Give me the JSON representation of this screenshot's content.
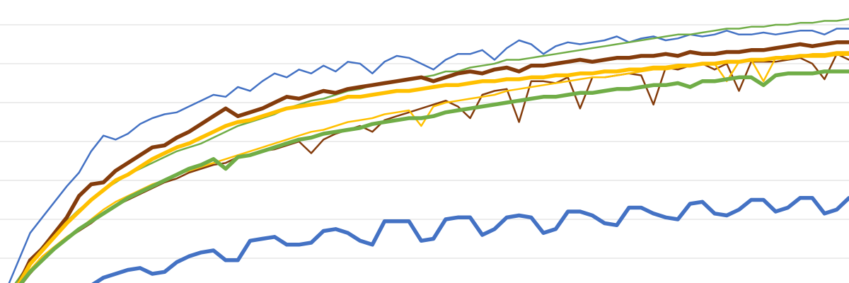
{
  "chart_data": {
    "type": "line",
    "title": "",
    "xlabel": "",
    "ylabel": "",
    "x": [
      1,
      2,
      3,
      4,
      5,
      6,
      7,
      8,
      9,
      10,
      11,
      12,
      13,
      14,
      15,
      16,
      17,
      18,
      19,
      20,
      21,
      22,
      23,
      24,
      25,
      26,
      27,
      28,
      29,
      30,
      31,
      32,
      33,
      34,
      35,
      36,
      37,
      38,
      39,
      40,
      41,
      42,
      43,
      44,
      45,
      46,
      47,
      48,
      49,
      50,
      51,
      52,
      53,
      54,
      55,
      56,
      57,
      58,
      59,
      60,
      61,
      62,
      63,
      64,
      65,
      66,
      67,
      68,
      69,
      70
    ],
    "ylim": [
      0,
      7.2
    ],
    "grid": true,
    "legend": "none",
    "series": [
      {
        "color": "#4472C4",
        "weight": "thin",
        "values": [
          0.15,
          0.9,
          1.65,
          2.05,
          2.45,
          2.85,
          3.2,
          3.75,
          4.15,
          4.05,
          4.2,
          4.45,
          4.6,
          4.7,
          4.75,
          4.9,
          5.05,
          5.2,
          5.15,
          5.4,
          5.3,
          5.55,
          5.75,
          5.65,
          5.85,
          5.75,
          5.95,
          5.8,
          6.05,
          6.0,
          5.75,
          6.05,
          6.2,
          6.15,
          6.0,
          5.85,
          6.1,
          6.25,
          6.25,
          6.35,
          6.1,
          6.4,
          6.6,
          6.5,
          6.25,
          6.45,
          6.55,
          6.5,
          6.55,
          6.6,
          6.7,
          6.55,
          6.65,
          6.7,
          6.6,
          6.65,
          6.75,
          6.7,
          6.75,
          6.85,
          6.75,
          6.75,
          6.8,
          6.75,
          6.8,
          6.85,
          6.85,
          6.75,
          6.9,
          6.9
        ]
      },
      {
        "color": "#70AD47",
        "weight": "thin",
        "values": [
          0.0,
          0.45,
          0.9,
          1.3,
          1.65,
          1.95,
          2.25,
          2.5,
          2.75,
          2.95,
          3.15,
          3.3,
          3.45,
          3.6,
          3.75,
          3.85,
          3.95,
          4.1,
          4.25,
          4.4,
          4.5,
          4.6,
          4.7,
          4.85,
          4.95,
          5.05,
          5.1,
          5.2,
          5.3,
          5.35,
          5.45,
          5.5,
          5.55,
          5.6,
          5.65,
          5.7,
          5.8,
          5.8,
          5.9,
          5.95,
          6.0,
          6.1,
          6.1,
          6.15,
          6.2,
          6.25,
          6.3,
          6.35,
          6.4,
          6.45,
          6.5,
          6.55,
          6.6,
          6.65,
          6.7,
          6.75,
          6.75,
          6.8,
          6.85,
          6.9,
          6.9,
          6.95,
          6.95,
          7.0,
          7.0,
          7.05,
          7.05,
          7.1,
          7.1,
          7.15
        ]
      },
      {
        "color": "#843C0C",
        "weight": "thick",
        "values": [
          0.0,
          0.3,
          0.95,
          1.25,
          1.65,
          2.05,
          2.6,
          2.9,
          2.95,
          3.25,
          3.45,
          3.65,
          3.85,
          3.9,
          4.1,
          4.25,
          4.45,
          4.65,
          4.85,
          4.65,
          4.75,
          4.85,
          5.0,
          5.15,
          5.1,
          5.2,
          5.3,
          5.25,
          5.35,
          5.4,
          5.45,
          5.5,
          5.55,
          5.6,
          5.65,
          5.55,
          5.65,
          5.75,
          5.8,
          5.75,
          5.85,
          5.9,
          5.8,
          5.95,
          5.95,
          6.0,
          6.05,
          6.1,
          6.05,
          6.1,
          6.15,
          6.15,
          6.2,
          6.2,
          6.25,
          6.2,
          6.3,
          6.25,
          6.25,
          6.3,
          6.3,
          6.35,
          6.35,
          6.4,
          6.45,
          6.5,
          6.45,
          6.5,
          6.55,
          6.55
        ]
      },
      {
        "color": "#843C0C",
        "weight": "thin",
        "values": [
          0.0,
          0.2,
          0.6,
          0.95,
          1.25,
          1.5,
          1.7,
          1.9,
          2.15,
          2.35,
          2.5,
          2.65,
          2.8,
          2.95,
          3.05,
          3.2,
          3.3,
          3.4,
          3.45,
          3.6,
          3.65,
          3.75,
          3.8,
          3.9,
          4.0,
          3.7,
          4.05,
          4.2,
          4.3,
          4.4,
          4.25,
          4.55,
          4.65,
          4.75,
          4.85,
          4.95,
          5.05,
          4.9,
          4.6,
          5.2,
          5.3,
          5.35,
          4.5,
          5.55,
          5.55,
          5.5,
          5.65,
          4.85,
          5.65,
          5.65,
          5.7,
          5.75,
          5.7,
          4.95,
          5.9,
          5.85,
          5.95,
          6.0,
          5.85,
          6.0,
          5.3,
          6.05,
          6.05,
          6.05,
          6.1,
          6.15,
          6.0,
          5.6,
          6.25,
          6.1
        ]
      },
      {
        "color": "#FFC000",
        "weight": "thick",
        "values": [
          0.0,
          0.3,
          0.85,
          1.2,
          1.55,
          1.9,
          2.2,
          2.5,
          2.75,
          3.0,
          3.15,
          3.35,
          3.55,
          3.7,
          3.85,
          3.95,
          4.1,
          4.25,
          4.4,
          4.5,
          4.55,
          4.65,
          4.75,
          4.85,
          4.9,
          4.95,
          5.0,
          5.05,
          5.15,
          5.15,
          5.2,
          5.25,
          5.3,
          5.3,
          5.35,
          5.4,
          5.45,
          5.45,
          5.5,
          5.55,
          5.55,
          5.6,
          5.6,
          5.65,
          5.65,
          5.7,
          5.7,
          5.75,
          5.75,
          5.8,
          5.8,
          5.85,
          5.85,
          5.9,
          5.9,
          5.95,
          5.95,
          6.0,
          6.0,
          6.05,
          6.05,
          6.1,
          6.1,
          6.15,
          6.15,
          6.2,
          6.2,
          6.2,
          6.25,
          6.25
        ]
      },
      {
        "color": "#FFC000",
        "weight": "thin",
        "values": [
          0.0,
          0.25,
          0.7,
          1.05,
          1.3,
          1.55,
          1.75,
          2.0,
          2.25,
          2.45,
          2.6,
          2.75,
          2.9,
          3.0,
          3.15,
          3.25,
          3.35,
          3.45,
          3.55,
          3.65,
          3.75,
          3.85,
          3.95,
          4.05,
          4.15,
          4.25,
          4.3,
          4.4,
          4.5,
          4.55,
          4.6,
          4.7,
          4.75,
          4.8,
          4.4,
          4.9,
          5.0,
          5.05,
          5.1,
          5.15,
          5.2,
          5.3,
          5.35,
          5.4,
          5.45,
          5.5,
          5.55,
          5.6,
          5.65,
          5.65,
          5.7,
          5.75,
          5.8,
          5.85,
          5.85,
          5.9,
          5.95,
          6.0,
          6.0,
          5.55,
          6.05,
          6.1,
          5.55,
          6.15,
          6.2,
          6.2,
          6.25,
          6.25,
          6.3,
          6.3
        ]
      },
      {
        "color": "#70AD47",
        "weight": "thick",
        "values": [
          0.0,
          0.25,
          0.65,
          0.95,
          1.25,
          1.5,
          1.75,
          1.95,
          2.15,
          2.35,
          2.55,
          2.7,
          2.85,
          3.0,
          3.15,
          3.3,
          3.4,
          3.55,
          3.3,
          3.6,
          3.65,
          3.75,
          3.85,
          3.95,
          4.05,
          4.1,
          4.2,
          4.25,
          4.3,
          4.35,
          4.45,
          4.5,
          4.55,
          4.6,
          4.6,
          4.65,
          4.75,
          4.8,
          4.85,
          4.9,
          4.95,
          5.0,
          5.05,
          5.1,
          5.15,
          5.15,
          5.2,
          5.25,
          5.25,
          5.3,
          5.35,
          5.35,
          5.4,
          5.45,
          5.45,
          5.5,
          5.4,
          5.55,
          5.55,
          5.6,
          5.65,
          5.65,
          5.45,
          5.7,
          5.75,
          5.75,
          5.75,
          5.8,
          5.8,
          5.8
        ]
      },
      {
        "color": "#4472C4",
        "weight": "thick",
        "values": [
          0.0,
          0.0,
          0.0,
          0.0,
          0.05,
          0.05,
          0.15,
          0.3,
          0.5,
          0.6,
          0.7,
          0.75,
          0.6,
          0.65,
          0.9,
          1.05,
          1.15,
          1.2,
          0.95,
          0.95,
          1.45,
          1.5,
          1.55,
          1.35,
          1.35,
          1.4,
          1.7,
          1.75,
          1.65,
          1.45,
          1.35,
          1.95,
          1.95,
          1.95,
          1.45,
          1.5,
          2.0,
          2.05,
          2.05,
          1.6,
          1.75,
          2.05,
          2.1,
          2.05,
          1.65,
          1.75,
          2.2,
          2.2,
          2.1,
          1.9,
          1.85,
          2.3,
          2.3,
          2.15,
          2.05,
          2.0,
          2.4,
          2.45,
          2.15,
          2.1,
          2.25,
          2.5,
          2.5,
          2.2,
          2.3,
          2.55,
          2.55,
          2.15,
          2.25,
          2.55
        ]
      }
    ]
  }
}
